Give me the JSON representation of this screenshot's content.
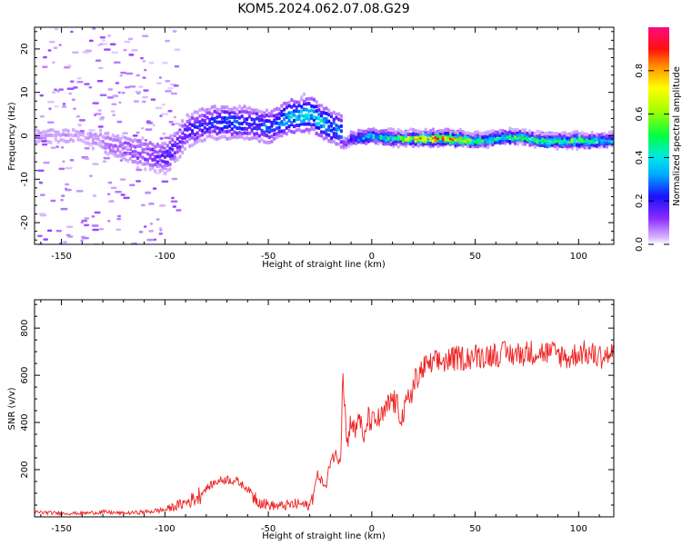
{
  "title": "KOM5.2024.062.07.08.G29",
  "chart_data": [
    {
      "type": "heatmap",
      "title": "KOM5.2024.062.07.08.G29",
      "xlabel": "Height of straight line (km)",
      "ylabel": "Frequency (Hz)",
      "xlim": [
        -163,
        117
      ],
      "ylim": [
        -25,
        25
      ],
      "xticks": [
        "-150",
        "-100",
        "-50",
        "0",
        "50",
        "100"
      ],
      "yticks": [
        "-20",
        "-10",
        "0",
        "10",
        "20"
      ],
      "colorbar": {
        "label": "Normalized spectral amplitude",
        "range": [
          0,
          1
        ],
        "ticks": [
          "0.0",
          "0.2",
          "0.4",
          "0.6",
          "0.8"
        ],
        "colormap": "rainbow (white-violet-blue-cyan-green-yellow-red-magenta)"
      },
      "ridge": {
        "description": "spectral ridge (approximate peak frequency vs height, with peak amplitude)",
        "x": [
          -160,
          -140,
          -120,
          -100,
          -90,
          -80,
          -70,
          -60,
          -50,
          -40,
          -30,
          -20,
          -15,
          -14,
          -10,
          0,
          10,
          20,
          30,
          40,
          50,
          60,
          70,
          80,
          90,
          100,
          110,
          117
        ],
        "y": [
          0,
          0,
          -3,
          -5,
          1,
          3,
          3,
          3,
          2,
          4.5,
          5,
          2,
          1,
          -2,
          -0.5,
          0,
          -0.5,
          -0.5,
          -0.5,
          -0.5,
          -1,
          -0.5,
          0,
          -1,
          -1,
          -1,
          -1,
          -1
        ],
        "amplitude": [
          0.05,
          0.05,
          0.1,
          0.2,
          0.2,
          0.25,
          0.3,
          0.25,
          0.3,
          0.4,
          0.45,
          0.35,
          0.3,
          0.15,
          0.3,
          0.4,
          0.55,
          0.8,
          0.95,
          0.95,
          0.55,
          0.5,
          0.6,
          0.55,
          0.6,
          0.65,
          0.5,
          0.45
        ]
      },
      "grid": false
    },
    {
      "type": "line",
      "xlabel": "Height of straight line (km)",
      "ylabel": "SNR (v/v)",
      "xlim": [
        -163,
        117
      ],
      "ylim": [
        0,
        920
      ],
      "xticks": [
        "-150",
        "-100",
        "-50",
        "0",
        "50",
        "100"
      ],
      "yticks": [
        "200",
        "400",
        "600",
        "800"
      ],
      "color": "#ee2222",
      "series": [
        {
          "x": [
            -163,
            -150,
            -140,
            -130,
            -120,
            -110,
            -100,
            -90,
            -85,
            -80,
            -75,
            -70,
            -65,
            -60,
            -55,
            -50,
            -45,
            -40,
            -35,
            -30,
            -26,
            -22,
            -20,
            -18,
            -15,
            -14,
            -12,
            -10,
            -8,
            -6,
            -4,
            -2,
            0,
            5,
            10,
            15,
            20,
            25,
            30,
            40,
            50,
            60,
            70,
            80,
            90,
            96,
            100,
            110,
            117
          ],
          "y": [
            20,
            15,
            15,
            20,
            15,
            20,
            30,
            60,
            80,
            120,
            150,
            160,
            150,
            120,
            70,
            50,
            45,
            50,
            55,
            45,
            180,
            120,
            250,
            260,
            250,
            650,
            300,
            420,
            350,
            450,
            300,
            420,
            400,
            420,
            500,
            420,
            560,
            630,
            650,
            670,
            680,
            690,
            690,
            700,
            690,
            670,
            700,
            680,
            690
          ]
        }
      ],
      "grid": false
    }
  ]
}
